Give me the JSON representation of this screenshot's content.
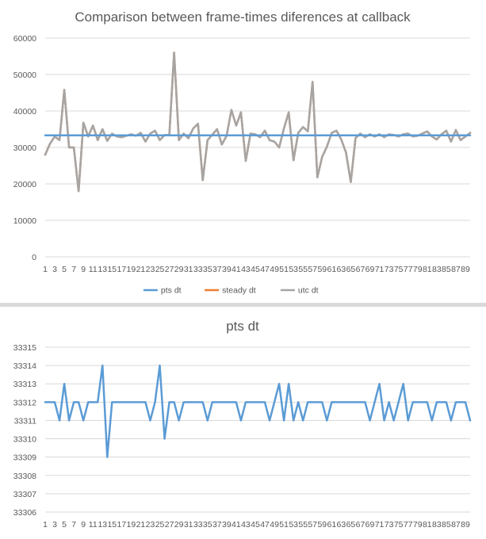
{
  "chart_data": [
    {
      "type": "line",
      "title": "Comparison between frame-times diferences at callback",
      "xlabel": "",
      "ylabel": "",
      "ylim": [
        0,
        60000
      ],
      "yticks": [
        0,
        10000,
        20000,
        30000,
        40000,
        50000,
        60000
      ],
      "x": [
        1,
        2,
        3,
        4,
        5,
        6,
        7,
        8,
        9,
        10,
        11,
        12,
        13,
        14,
        15,
        16,
        17,
        18,
        19,
        20,
        21,
        22,
        23,
        24,
        25,
        26,
        27,
        28,
        29,
        30,
        31,
        32,
        33,
        34,
        35,
        36,
        37,
        38,
        39,
        40,
        41,
        42,
        43,
        44,
        45,
        46,
        47,
        48,
        49,
        50,
        51,
        52,
        53,
        54,
        55,
        56,
        57,
        58,
        59,
        60,
        61,
        62,
        63,
        64,
        65,
        66,
        67,
        68,
        69,
        70,
        71,
        72,
        73,
        74,
        75,
        76,
        77,
        78,
        79,
        80,
        81,
        82,
        83,
        84,
        85,
        86,
        87,
        88,
        89,
        90
      ],
      "xtick_labels": [
        "1",
        "3",
        "5",
        "7",
        "9",
        "11",
        "13",
        "15",
        "17",
        "19",
        "21",
        "23",
        "25",
        "27",
        "29",
        "31",
        "33",
        "35",
        "37",
        "39",
        "41",
        "43",
        "45",
        "47",
        "49",
        "51",
        "53",
        "55",
        "57",
        "59",
        "61",
        "63",
        "65",
        "67",
        "69",
        "71",
        "73",
        "75",
        "77",
        "79",
        "81",
        "83",
        "85",
        "87",
        "89"
      ],
      "grid": true,
      "legend_position": "bottom",
      "series": [
        {
          "name": "pts dt",
          "color": "#5b9bd5",
          "values": [
            33312,
            33312,
            33312,
            33311,
            33313,
            33311,
            33312,
            33312,
            33311,
            33312,
            33312,
            33312,
            33314,
            33309,
            33312,
            33312,
            33312,
            33312,
            33312,
            33312,
            33312,
            33312,
            33311,
            33312,
            33314,
            33310,
            33312,
            33312,
            33311,
            33312,
            33312,
            33312,
            33312,
            33312,
            33311,
            33312,
            33312,
            33312,
            33312,
            33312,
            33312,
            33311,
            33312,
            33312,
            33312,
            33312,
            33312,
            33311,
            33312,
            33313,
            33311,
            33313,
            33311,
            33312,
            33311,
            33312,
            33312,
            33312,
            33312,
            33311,
            33312,
            33312,
            33312,
            33312,
            33312,
            33312,
            33312,
            33312,
            33311,
            33312,
            33313,
            33311,
            33312,
            33311,
            33312,
            33313,
            33311,
            33312,
            33312,
            33312,
            33312,
            33311,
            33312,
            33312,
            33312,
            33311,
            33312,
            33312,
            33312,
            33311
          ]
        },
        {
          "name": "steady dt",
          "color": "#ed7d31",
          "values": [
            28000,
            31000,
            33000,
            32000,
            45800,
            30000,
            30000,
            18000,
            36800,
            33000,
            36000,
            32000,
            35000,
            31800,
            33800,
            33000,
            32800,
            33200,
            33600,
            33200,
            34000,
            31600,
            33800,
            34600,
            32000,
            33400,
            33400,
            56000,
            32000,
            33800,
            32500,
            35200,
            36500,
            21000,
            32000,
            33500,
            35000,
            30800,
            33200,
            40300,
            36000,
            39600,
            26300,
            33800,
            33600,
            32800,
            34600,
            32000,
            31600,
            30000,
            35200,
            39600,
            26500,
            34000,
            35600,
            34400,
            48000,
            21800,
            27400,
            30200,
            34000,
            34600,
            32200,
            28600,
            20500,
            32600,
            33800,
            32800,
            33600,
            33000,
            33600,
            32800,
            33600,
            33400,
            33000,
            33600,
            33800,
            33000,
            33200,
            33800,
            34400,
            33000,
            32200,
            33600,
            34600,
            31600,
            34800,
            32000,
            33000,
            34000
          ]
        },
        {
          "name": "utc dt",
          "color": "#a5a5a5",
          "values": [
            28000,
            31000,
            33000,
            32000,
            45800,
            30000,
            30000,
            18000,
            36800,
            33000,
            36000,
            32000,
            35000,
            31800,
            33800,
            33000,
            32800,
            33200,
            33600,
            33200,
            34000,
            31600,
            33800,
            34600,
            32000,
            33400,
            33400,
            56000,
            32000,
            33800,
            32500,
            35200,
            36500,
            21000,
            32000,
            33500,
            35000,
            30800,
            33200,
            40300,
            36000,
            39600,
            26300,
            33800,
            33600,
            32800,
            34600,
            32000,
            31600,
            30000,
            35200,
            39600,
            26500,
            34000,
            35600,
            34400,
            48000,
            21800,
            27400,
            30200,
            34000,
            34600,
            32200,
            28600,
            20500,
            32600,
            33800,
            32800,
            33600,
            33000,
            33600,
            32800,
            33600,
            33400,
            33000,
            33600,
            33800,
            33000,
            33200,
            33800,
            34400,
            33000,
            32200,
            33600,
            34600,
            31600,
            34800,
            32000,
            33000,
            34000
          ]
        }
      ]
    },
    {
      "type": "line",
      "title": "pts dt",
      "xlabel": "",
      "ylabel": "",
      "ylim": [
        33306,
        33315
      ],
      "yticks": [
        33306,
        33307,
        33308,
        33309,
        33310,
        33311,
        33312,
        33313,
        33314,
        33315
      ],
      "x": [
        1,
        2,
        3,
        4,
        5,
        6,
        7,
        8,
        9,
        10,
        11,
        12,
        13,
        14,
        15,
        16,
        17,
        18,
        19,
        20,
        21,
        22,
        23,
        24,
        25,
        26,
        27,
        28,
        29,
        30,
        31,
        32,
        33,
        34,
        35,
        36,
        37,
        38,
        39,
        40,
        41,
        42,
        43,
        44,
        45,
        46,
        47,
        48,
        49,
        50,
        51,
        52,
        53,
        54,
        55,
        56,
        57,
        58,
        59,
        60,
        61,
        62,
        63,
        64,
        65,
        66,
        67,
        68,
        69,
        70,
        71,
        72,
        73,
        74,
        75,
        76,
        77,
        78,
        79,
        80,
        81,
        82,
        83,
        84,
        85,
        86,
        87,
        88,
        89,
        90
      ],
      "xtick_labels": [
        "1",
        "3",
        "5",
        "7",
        "9",
        "11",
        "13",
        "15",
        "17",
        "19",
        "21",
        "23",
        "25",
        "27",
        "29",
        "31",
        "33",
        "35",
        "37",
        "39",
        "41",
        "43",
        "45",
        "47",
        "49",
        "51",
        "53",
        "55",
        "57",
        "59",
        "61",
        "63",
        "65",
        "67",
        "69",
        "71",
        "73",
        "75",
        "77",
        "79",
        "81",
        "83",
        "85",
        "87",
        "89"
      ],
      "grid": true,
      "legend_position": "none",
      "series": [
        {
          "name": "pts dt",
          "color": "#5b9bd5",
          "values": [
            33312,
            33312,
            33312,
            33311,
            33313,
            33311,
            33312,
            33312,
            33311,
            33312,
            33312,
            33312,
            33314,
            33309,
            33312,
            33312,
            33312,
            33312,
            33312,
            33312,
            33312,
            33312,
            33311,
            33312,
            33314,
            33310,
            33312,
            33312,
            33311,
            33312,
            33312,
            33312,
            33312,
            33312,
            33311,
            33312,
            33312,
            33312,
            33312,
            33312,
            33312,
            33311,
            33312,
            33312,
            33312,
            33312,
            33312,
            33311,
            33312,
            33313,
            33311,
            33313,
            33311,
            33312,
            33311,
            33312,
            33312,
            33312,
            33312,
            33311,
            33312,
            33312,
            33312,
            33312,
            33312,
            33312,
            33312,
            33312,
            33311,
            33312,
            33313,
            33311,
            33312,
            33311,
            33312,
            33313,
            33311,
            33312,
            33312,
            33312,
            33312,
            33311,
            33312,
            33312,
            33312,
            33311,
            33312,
            33312,
            33312,
            33311
          ]
        }
      ]
    }
  ]
}
